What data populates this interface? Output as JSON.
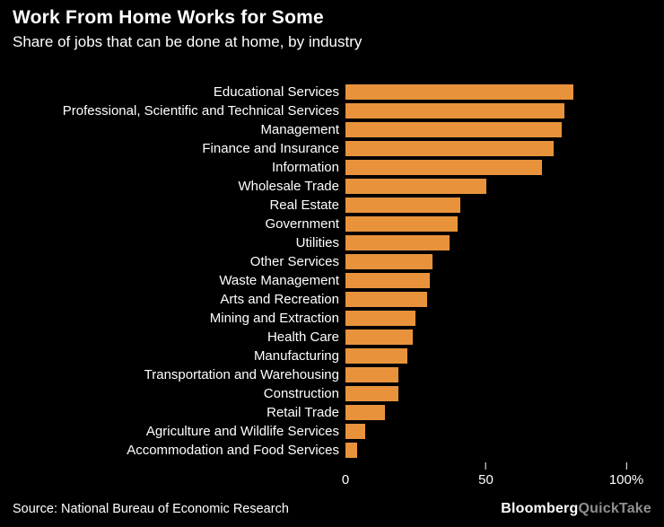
{
  "header": {
    "title": "Work From Home Works for Some",
    "subtitle": "Share of jobs that can be done at home, by industry"
  },
  "chart_data": {
    "type": "bar",
    "orientation": "horizontal",
    "title": "Work From Home Works for Some",
    "subtitle": "Share of jobs that can be done at home, by industry",
    "xlabel": "",
    "ylabel": "",
    "xlim": [
      0,
      100
    ],
    "bar_color": "#E8933C",
    "background_color": "#000000",
    "categories": [
      "Educational Services",
      "Professional, Scientific and Technical Services",
      "Management",
      "Finance and Insurance",
      "Information",
      "Wholesale Trade",
      "Real Estate",
      "Government",
      "Utilities",
      "Other Services",
      "Waste Management",
      "Arts and Recreation",
      "Mining and Extraction",
      "Health Care",
      "Manufacturing",
      "Transportation and Warehousing",
      "Construction",
      "Retail Trade",
      "Agriculture and Wildlife Services",
      "Accommodation and Food Services"
    ],
    "values": [
      81,
      78,
      77,
      74,
      70,
      50,
      41,
      40,
      37,
      31,
      30,
      29,
      25,
      24,
      22,
      19,
      19,
      14,
      7,
      4
    ],
    "x_ticks": [
      {
        "pos": 0,
        "label": "0",
        "mark": false
      },
      {
        "pos": 50,
        "label": "50",
        "mark": true
      },
      {
        "pos": 100,
        "label": "100%",
        "mark": true
      }
    ]
  },
  "footer": {
    "source": "Source: National Bureau of Economic Research",
    "brand_main": "Bloomberg",
    "brand_suffix": "QuickTake"
  }
}
